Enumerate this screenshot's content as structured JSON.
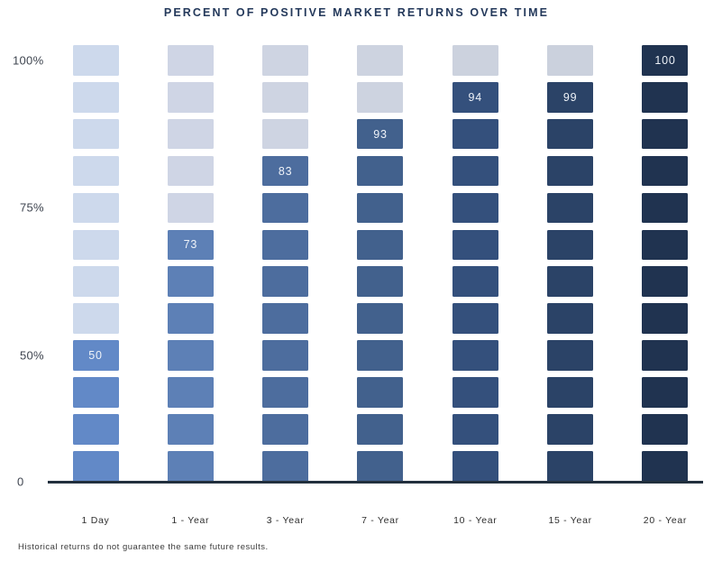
{
  "title": "PERCENT OF POSITIVE MARKET RETURNS OVER TIME",
  "footnote": "Historical returns do not guarantee the same future results.",
  "chart_data": {
    "type": "bar",
    "subtype": "waffle-column",
    "title": "PERCENT OF POSITIVE MARKET RETURNS OVER TIME",
    "categories": [
      "1 Day",
      "1 - Year",
      "3 - Year",
      "7 - Year",
      "10 - Year",
      "15 - Year",
      "20 - Year"
    ],
    "values": [
      50,
      73,
      83,
      93,
      94,
      99,
      100
    ],
    "value_labels": [
      "50",
      "73",
      "83",
      "93",
      "94",
      "99",
      "100"
    ],
    "segments_per_column": 12,
    "segments_filled": [
      4,
      7,
      9,
      10,
      11,
      11,
      12
    ],
    "y_ticks": [
      "100%",
      "75%",
      "50%",
      "0"
    ],
    "ylim": [
      0,
      100
    ],
    "grid": false,
    "legend": false,
    "xlabel": "",
    "ylabel": "",
    "fill_colors": [
      "#6289c7",
      "#5d80b6",
      "#4d6d9e",
      "#42618d",
      "#34507c",
      "#2b4367",
      "#203350"
    ],
    "empty_colors": [
      "#cdd9ec",
      "#cfd5e5",
      "#ced4e2",
      "#cdd3e0",
      "#ccd2de",
      "#cbd1dd",
      "#cbd1dd"
    ],
    "axis_line_color": "#22303e",
    "value_label_color": "#eef2f8",
    "title_color": "#24395b"
  }
}
